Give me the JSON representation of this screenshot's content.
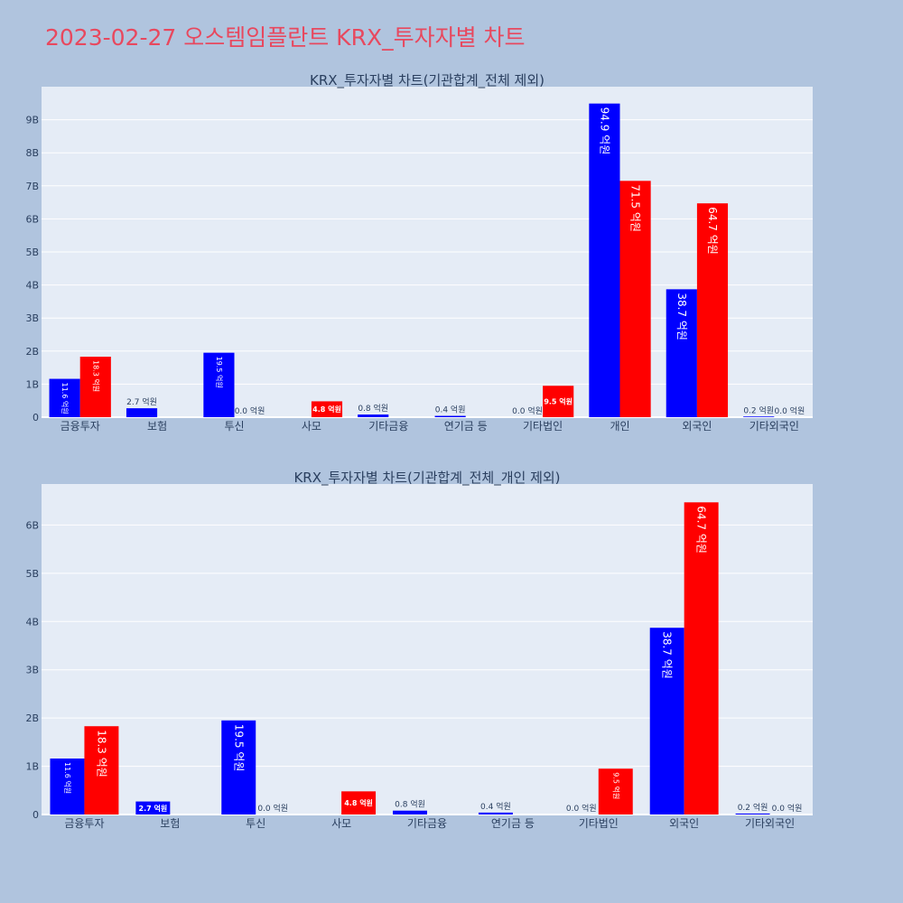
{
  "page": {
    "title": "2023-02-27 오스템임플란트 KRX_투자자별 차트"
  },
  "colors": {
    "page_bg": "#b0c4de",
    "plot_bg": "#e5ecf6",
    "title": "#e8485e",
    "series_blue": "#0000ff",
    "series_red": "#ff0000",
    "text": "#2a3f5f"
  },
  "chart_data": [
    {
      "type": "bar",
      "title": "KRX_투자자별 차트(기관합계_전체 제외)",
      "categories": [
        "금융투자",
        "보험",
        "투신",
        "사모",
        "기타금융",
        "연기금 등",
        "기타법인",
        "개인",
        "외국인",
        "기타외국인"
      ],
      "series": [
        {
          "color": "#0000ff",
          "values": [
            1160000000,
            270000000,
            1950000000,
            0,
            80000000,
            40000000,
            0,
            9490000000,
            3870000000,
            20000000
          ],
          "labels": [
            "11.6 억원",
            "2.7 억원",
            "19.5 억원",
            "",
            "0.8 억원",
            "0.4 억원",
            "0.0 억원",
            "94.9 억원",
            "38.7 억원",
            "0.2 억원"
          ]
        },
        {
          "color": "#ff0000",
          "values": [
            1830000000,
            0,
            0,
            480000000,
            0,
            0,
            950000000,
            7150000000,
            6470000000,
            0
          ],
          "labels": [
            "18.3 억원",
            "",
            "0.0 억원",
            "4.8 억원",
            "",
            "",
            "9.5 억원",
            "71.5 억원",
            "64.7 억원",
            "0.0 억원"
          ]
        }
      ],
      "ylim": [
        0,
        10000000000
      ],
      "yticks": [
        0,
        1000000000,
        2000000000,
        3000000000,
        4000000000,
        5000000000,
        6000000000,
        7000000000,
        8000000000,
        9000000000
      ],
      "ytick_labels": [
        "0",
        "1B",
        "2B",
        "3B",
        "4B",
        "5B",
        "6B",
        "7B",
        "8B",
        "9B"
      ],
      "grid": true,
      "legend": "none"
    },
    {
      "type": "bar",
      "title": "KRX_투자자별 차트(기관합계_전체_개인 제외)",
      "categories": [
        "금융투자",
        "보험",
        "투신",
        "사모",
        "기타금융",
        "연기금 등",
        "기타법인",
        "외국인",
        "기타외국인"
      ],
      "series": [
        {
          "color": "#0000ff",
          "values": [
            1160000000,
            270000000,
            1950000000,
            0,
            80000000,
            40000000,
            0,
            3870000000,
            20000000
          ],
          "labels": [
            "11.6 억원",
            "2.7 억원",
            "19.5 억원",
            "",
            "0.8 억원",
            "0.4 억원",
            "0.0 억원",
            "38.7 억원",
            "0.2 억원"
          ]
        },
        {
          "color": "#ff0000",
          "values": [
            1830000000,
            0,
            0,
            480000000,
            0,
            0,
            950000000,
            6470000000,
            0
          ],
          "labels": [
            "18.3 억원",
            "",
            "0.0 억원",
            "4.8 억원",
            "",
            "",
            "9.5 억원",
            "64.7 억원",
            "0.0 억원"
          ]
        }
      ],
      "ylim": [
        0,
        6850000000
      ],
      "yticks": [
        0,
        1000000000,
        2000000000,
        3000000000,
        4000000000,
        5000000000,
        6000000000
      ],
      "ytick_labels": [
        "0",
        "1B",
        "2B",
        "3B",
        "4B",
        "5B",
        "6B"
      ],
      "grid": true,
      "legend": "none"
    }
  ]
}
